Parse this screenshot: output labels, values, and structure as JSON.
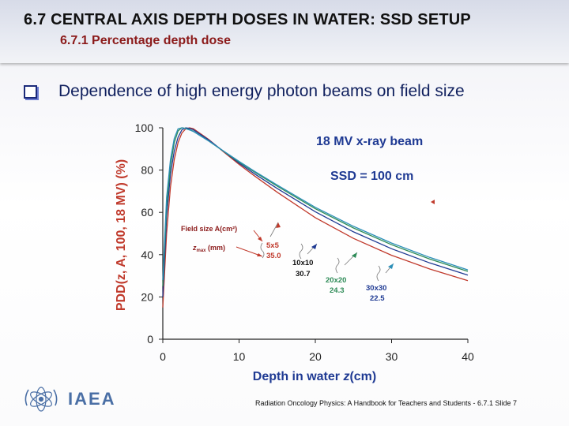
{
  "header": {
    "title": "6.7  CENTRAL AXIS DEPTH DOSES IN WATER: SSD SETUP",
    "subtitle": "6.7.1 Percentage depth dose"
  },
  "bullet": {
    "icon": "checkbox-bullet-icon",
    "text": "Dependence of high energy photon beams on field size"
  },
  "chart_data": {
    "type": "line",
    "title": "18 MV x-ray beam",
    "subtitle": "SSD = 100 cm",
    "xlabel": "Depth in water",
    "xlabel_var": "z",
    "xlabel_unit": "(cm)",
    "ylabel": "PDD(z, A, 100, 18 MV)   (%)",
    "xlim": [
      0,
      40
    ],
    "ylim": [
      0,
      100
    ],
    "xticks": [
      "0",
      "10",
      "20",
      "30",
      "40"
    ],
    "yticks": [
      "0",
      "20",
      "40",
      "60",
      "80",
      "100"
    ],
    "grid": false,
    "annotation_header": {
      "field_size": "Field size A(cm²)",
      "zmax": "z",
      "zmax_sub": "max",
      "zmax_unit": " (mm)"
    },
    "series": [
      {
        "name": "5x5",
        "zmax_label": "35.0",
        "color": "#c0392b",
        "x": [
          0,
          0.5,
          1,
          1.5,
          2,
          2.5,
          3,
          3.5,
          4,
          6,
          8,
          10,
          12,
          15,
          20,
          25,
          30,
          35,
          40
        ],
        "y": [
          15,
          50,
          72,
          85,
          93,
          97.5,
          99.5,
          100,
          99.6,
          94.5,
          88.5,
          82.7,
          77.3,
          69.5,
          57.5,
          47.7,
          39.7,
          33.2,
          27.7
        ]
      },
      {
        "name": "10x10",
        "zmax_label": "30.7",
        "color": "#1f3a93",
        "x": [
          0,
          0.5,
          1,
          1.5,
          2,
          2.5,
          3,
          3.5,
          4,
          6,
          8,
          10,
          12,
          15,
          20,
          25,
          30,
          35,
          40
        ],
        "y": [
          20,
          58,
          78,
          89,
          95.5,
          99,
          100,
          99.7,
          99.1,
          94.3,
          88.8,
          83.3,
          78.3,
          71.3,
          60.3,
          50.8,
          42.8,
          36.1,
          30.3
        ]
      },
      {
        "name": "20x20",
        "zmax_label": "24.3",
        "color": "#2e8b57",
        "x": [
          0,
          0.5,
          1,
          1.5,
          2,
          2.5,
          3,
          3.5,
          4,
          6,
          8,
          10,
          12,
          15,
          20,
          25,
          30,
          35,
          40
        ],
        "y": [
          25,
          63,
          82,
          93,
          98.5,
          100,
          99.7,
          99.1,
          98.4,
          93.8,
          88.8,
          83.8,
          79.1,
          72.4,
          61.7,
          52.6,
          44.7,
          37.9,
          32.1
        ]
      },
      {
        "name": "30x30",
        "zmax_label": "22.5",
        "color": "#2c8fb8",
        "x": [
          0,
          0.5,
          1,
          1.5,
          2,
          2.5,
          3,
          3.5,
          4,
          6,
          8,
          10,
          12,
          15,
          20,
          25,
          30,
          35,
          40
        ],
        "y": [
          28,
          67,
          85,
          95,
          99.5,
          100,
          99.6,
          99,
          98.3,
          93.8,
          88.9,
          84.1,
          79.5,
          72.9,
          62.4,
          53.4,
          45.5,
          38.7,
          32.8
        ]
      }
    ]
  },
  "footer": {
    "logo_text": "IAEA",
    "logo_icon": "iaea-emblem-icon",
    "citation": "Radiation Oncology Physics: A Handbook for Teachers and Students - 6.7.1 Slide 7"
  }
}
